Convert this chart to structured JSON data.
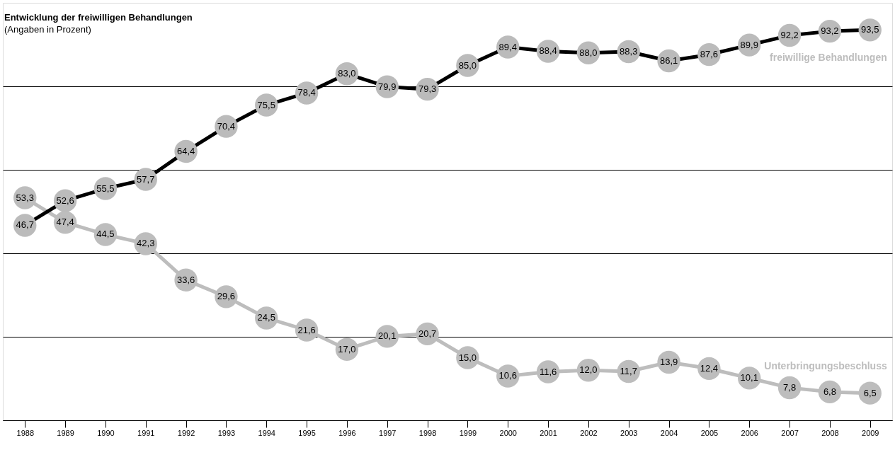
{
  "chart_data": {
    "type": "line",
    "title": "Entwicklung der freiwilligen Behandlungen",
    "subtitle": "(Angaben in Prozent)",
    "categories": [
      "1988",
      "1989",
      "1990",
      "1991",
      "1992",
      "1993",
      "1994",
      "1995",
      "1996",
      "1997",
      "1998",
      "1999",
      "2000",
      "2001",
      "2002",
      "2003",
      "2004",
      "2005",
      "2006",
      "2007",
      "2008",
      "2009"
    ],
    "series": [
      {
        "name": "freiwillige Behandlungen",
        "color": "#000000",
        "values": [
          46.7,
          52.6,
          55.5,
          57.7,
          64.4,
          70.4,
          75.5,
          78.4,
          83.0,
          79.9,
          79.3,
          85.0,
          89.4,
          88.4,
          88.0,
          88.3,
          86.1,
          87.6,
          89.9,
          92.2,
          93.2,
          93.5
        ],
        "value_labels": [
          "46,7",
          "52,6",
          "55,5",
          "57,7",
          "64,4",
          "70,4",
          "75,5",
          "78,4",
          "83,0",
          "79,9",
          "79,3",
          "85,0",
          "89,4",
          "88,4",
          "88,0",
          "88,3",
          "86,1",
          "87,6",
          "89,9",
          "92,2",
          "93,2",
          "93,5"
        ]
      },
      {
        "name": "Unterbringungsbeschluss",
        "color": "#bdbdbd",
        "values": [
          53.3,
          47.4,
          44.5,
          42.3,
          33.6,
          29.6,
          24.5,
          21.6,
          17.0,
          20.1,
          20.7,
          15.0,
          10.6,
          11.6,
          12.0,
          11.7,
          13.9,
          12.4,
          10.1,
          7.8,
          6.8,
          6.5
        ],
        "value_labels": [
          "53,3",
          "47,4",
          "44,5",
          "42,3",
          "33,6",
          "29,6",
          "24,5",
          "21,6",
          "17,0",
          "20,1",
          "20,7",
          "15,0",
          "10,6",
          "11,6",
          "12,0",
          "11,7",
          "13,9",
          "12,4",
          "10,1",
          "7,8",
          "6,8",
          "6,5"
        ]
      }
    ],
    "ylim": [
      0,
      100
    ],
    "tick_labels": "x",
    "grid": "y",
    "marker": "circle",
    "line_style": "solid"
  }
}
